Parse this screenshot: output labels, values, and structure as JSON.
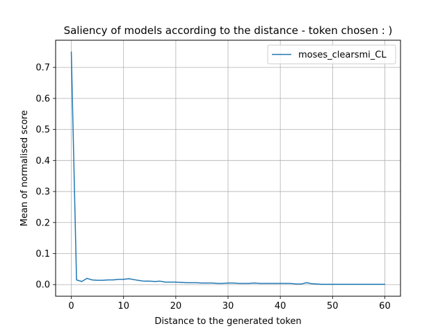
{
  "chart_data": {
    "type": "line",
    "title": "Saliency of models according to the distance - token chosen : )",
    "xlabel": "Distance to the generated token",
    "ylabel": "Mean of normalised score",
    "xlim": [
      -3,
      63
    ],
    "ylim": [
      -0.0375,
      0.7875
    ],
    "xticks": [
      0,
      10,
      20,
      30,
      40,
      50,
      60
    ],
    "yticks": [
      0.0,
      0.1,
      0.2,
      0.3,
      0.4,
      0.5,
      0.6,
      0.7
    ],
    "ytick_labels": [
      "0.0",
      "0.1",
      "0.2",
      "0.3",
      "0.4",
      "0.5",
      "0.6",
      "0.7"
    ],
    "xtick_labels": [
      "0",
      "10",
      "20",
      "30",
      "40",
      "50",
      "60"
    ],
    "grid": true,
    "legend_position": "top-right",
    "colors": {
      "series": "#1f77b4",
      "grid": "#b0b0b0",
      "axes": "#000000",
      "legend_border": "#cccccc"
    },
    "series": [
      {
        "name": "moses_clearsmi_CL",
        "x": [
          0,
          1,
          2,
          3,
          4,
          5,
          6,
          7,
          8,
          9,
          10,
          11,
          12,
          13,
          14,
          15,
          16,
          17,
          18,
          19,
          20,
          21,
          22,
          23,
          24,
          25,
          26,
          27,
          28,
          29,
          30,
          31,
          32,
          33,
          34,
          35,
          36,
          37,
          38,
          39,
          40,
          41,
          42,
          43,
          44,
          45,
          46,
          47,
          48,
          49,
          50,
          51,
          52,
          53,
          54,
          55,
          56,
          57,
          58,
          59,
          60
        ],
        "y": [
          0.75,
          0.015,
          0.01,
          0.02,
          0.015,
          0.014,
          0.014,
          0.015,
          0.015,
          0.017,
          0.017,
          0.019,
          0.016,
          0.013,
          0.011,
          0.011,
          0.01,
          0.011,
          0.008,
          0.008,
          0.008,
          0.007,
          0.006,
          0.006,
          0.006,
          0.005,
          0.005,
          0.005,
          0.004,
          0.004,
          0.005,
          0.005,
          0.004,
          0.004,
          0.004,
          0.005,
          0.004,
          0.004,
          0.004,
          0.004,
          0.004,
          0.004,
          0.004,
          0.002,
          0.002,
          0.006,
          0.003,
          0.002,
          0.001,
          0.001,
          0.001,
          0.001,
          0.001,
          0.001,
          0.001,
          0.001,
          0.001,
          0.001,
          0.001,
          0.001,
          0.001
        ]
      }
    ]
  }
}
